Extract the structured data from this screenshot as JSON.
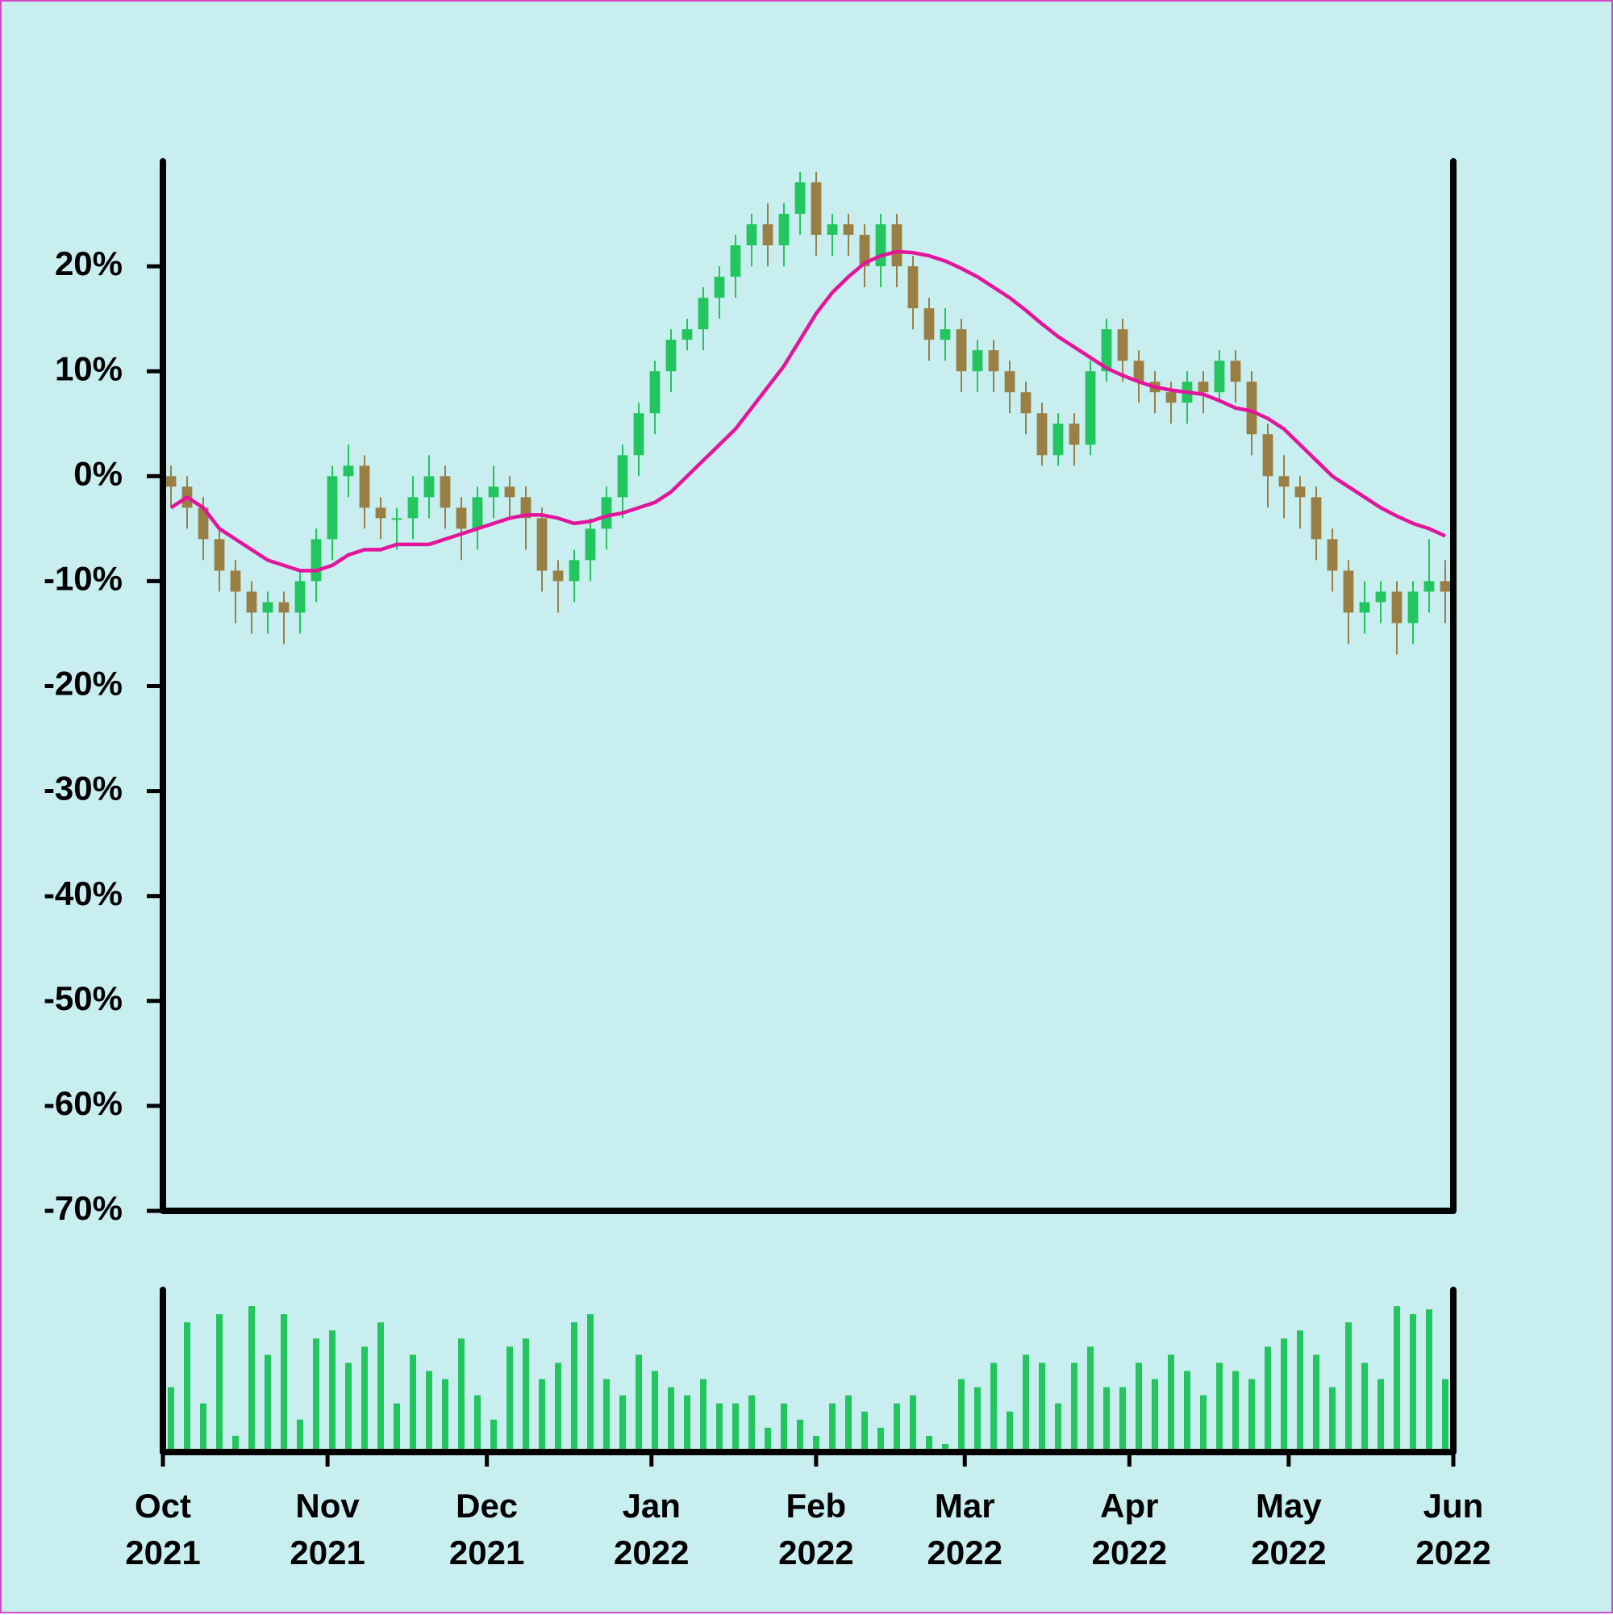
{
  "chart_data": [
    {
      "type": "candlestick",
      "xlim": [
        "2021-10",
        "2022-06"
      ],
      "ylim": [
        -70,
        30
      ],
      "yticks": [
        {
          "value": 20,
          "label": "20%"
        },
        {
          "value": 10,
          "label": "10%"
        },
        {
          "value": 0,
          "label": "0%"
        },
        {
          "value": -10,
          "label": "-10%"
        },
        {
          "value": -20,
          "label": "-20%"
        },
        {
          "value": -30,
          "label": "-30%"
        },
        {
          "value": -40,
          "label": "-40%"
        },
        {
          "value": -50,
          "label": "-50%"
        },
        {
          "value": -60,
          "label": "-60%"
        },
        {
          "value": -70,
          "label": "-70%"
        }
      ],
      "up_color": "#22c55e",
      "down_color": "#9a7f45",
      "open": [
        0,
        -1,
        -3,
        -6,
        -9,
        -11,
        -13,
        -12,
        -13,
        -10,
        -6,
        0,
        1,
        -3,
        -4,
        -4,
        -2,
        0,
        -3,
        -5,
        -2,
        -1,
        -2,
        -4,
        -9,
        -10,
        -8,
        -5,
        -2,
        2,
        6,
        10,
        13,
        14,
        17,
        19,
        22,
        24,
        22,
        25,
        28,
        23,
        24,
        23,
        20,
        24,
        20,
        16,
        13,
        14,
        10,
        12,
        10,
        8,
        6,
        2,
        5,
        3,
        10,
        14,
        11,
        9,
        8,
        7,
        9,
        8,
        11,
        9,
        4,
        0,
        -1,
        -2,
        -6,
        -9,
        -13,
        -12,
        -11,
        -14,
        -11,
        -10
      ],
      "high": [
        1,
        0,
        -2,
        -5,
        -8,
        -10,
        -11,
        -11,
        -9,
        -5,
        1,
        3,
        2,
        -2,
        -3,
        0,
        2,
        1,
        -2,
        -1,
        1,
        0,
        -1,
        -3,
        -8,
        -7,
        -4,
        -1,
        3,
        7,
        11,
        14,
        15,
        18,
        20,
        23,
        25,
        26,
        26,
        29,
        29,
        25,
        25,
        24,
        25,
        25,
        21,
        17,
        16,
        15,
        13,
        13,
        11,
        9,
        7,
        6,
        6,
        11,
        15,
        15,
        12,
        10,
        9,
        10,
        10,
        12,
        12,
        10,
        5,
        2,
        0,
        -1,
        -5,
        -8,
        -10,
        -10,
        -10,
        -10,
        -6,
        -8
      ],
      "low": [
        -3,
        -5,
        -8,
        -11,
        -14,
        -15,
        -15,
        -16,
        -15,
        -12,
        -8,
        -2,
        -5,
        -6,
        -7,
        -6,
        -4,
        -5,
        -8,
        -7,
        -4,
        -4,
        -7,
        -11,
        -13,
        -12,
        -10,
        -7,
        -4,
        0,
        4,
        8,
        12,
        12,
        15,
        17,
        20,
        20,
        20,
        23,
        21,
        21,
        21,
        18,
        18,
        18,
        14,
        11,
        11,
        8,
        8,
        8,
        6,
        4,
        1,
        1,
        1,
        2,
        9,
        9,
        7,
        6,
        5,
        5,
        6,
        7,
        7,
        2,
        -3,
        -4,
        -5,
        -8,
        -11,
        -16,
        -15,
        -14,
        -17,
        -16,
        -13,
        -14
      ],
      "close": [
        -1,
        -3,
        -6,
        -9,
        -11,
        -13,
        -12,
        -13,
        -10,
        -6,
        0,
        1,
        -3,
        -4,
        -4,
        -2,
        0,
        -3,
        -5,
        -2,
        -1,
        -2,
        -4,
        -9,
        -10,
        -8,
        -5,
        -2,
        2,
        6,
        10,
        13,
        14,
        17,
        19,
        22,
        24,
        22,
        25,
        28,
        23,
        24,
        23,
        20,
        24,
        20,
        16,
        13,
        14,
        10,
        12,
        10,
        8,
        6,
        2,
        5,
        3,
        10,
        14,
        11,
        9,
        8,
        7,
        9,
        8,
        11,
        9,
        4,
        0,
        -1,
        -2,
        -6,
        -9,
        -13,
        -12,
        -11,
        -14,
        -11,
        -10,
        -11
      ],
      "overlay": {
        "type": "line",
        "color": "#e3159b",
        "values": [
          -3,
          -2,
          -3,
          -5,
          -6,
          -7,
          -8,
          -8.5,
          -9,
          -9,
          -8.5,
          -7.5,
          -7,
          -7,
          -6.5,
          -6.5,
          -6.5,
          -6,
          -5.5,
          -5,
          -4.5,
          -4,
          -3.7,
          -3.7,
          -4,
          -4.5,
          -4.3,
          -3.8,
          -3.5,
          -3,
          -2.5,
          -1.5,
          0,
          1.5,
          3,
          4.5,
          6.5,
          8.5,
          10.5,
          13,
          15.5,
          17.5,
          19,
          20.3,
          21,
          21.4,
          21.3,
          21,
          20.5,
          19.8,
          19,
          18,
          17,
          15.8,
          14.5,
          13.3,
          12.3,
          11.3,
          10.3,
          9.6,
          9,
          8.5,
          8.2,
          8,
          7.8,
          7.2,
          6.5,
          6.2,
          5.5,
          4.5,
          3,
          1.5,
          0,
          -1,
          -2,
          -3,
          -3.8,
          -4.5,
          -5,
          -5.7
        ]
      }
    },
    {
      "type": "bar",
      "color": "#22c55e",
      "xlim": [
        "2021-10",
        "2022-06"
      ],
      "ylim": [
        0,
        100
      ],
      "xticks": [
        {
          "value": "2021-10",
          "label": "Oct\n2021"
        },
        {
          "value": "2021-11",
          "label": "Nov\n2021"
        },
        {
          "value": "2021-12",
          "label": "Dec\n2021"
        },
        {
          "value": "2022-01",
          "label": "Jan\n2022"
        },
        {
          "value": "2022-02",
          "label": "Feb\n2022"
        },
        {
          "value": "2022-03",
          "label": "Mar\n2022"
        },
        {
          "value": "2022-04",
          "label": "Apr\n2022"
        },
        {
          "value": "2022-05",
          "label": "May\n2022"
        },
        {
          "value": "2022-06",
          "label": "Jun\n2022"
        }
      ],
      "values": [
        40,
        80,
        30,
        85,
        10,
        90,
        60,
        85,
        20,
        70,
        75,
        55,
        65,
        80,
        30,
        60,
        50,
        45,
        70,
        35,
        20,
        65,
        70,
        45,
        55,
        80,
        85,
        45,
        35,
        60,
        50,
        40,
        35,
        45,
        30,
        30,
        35,
        15,
        30,
        20,
        10,
        30,
        35,
        25,
        15,
        30,
        35,
        10,
        5,
        45,
        40,
        55,
        25,
        60,
        55,
        30,
        55,
        65,
        40,
        40,
        55,
        45,
        60,
        50,
        35,
        55,
        50,
        45,
        65,
        70,
        75,
        60,
        40,
        80,
        55,
        45,
        90,
        85,
        88,
        45
      ]
    }
  ]
}
